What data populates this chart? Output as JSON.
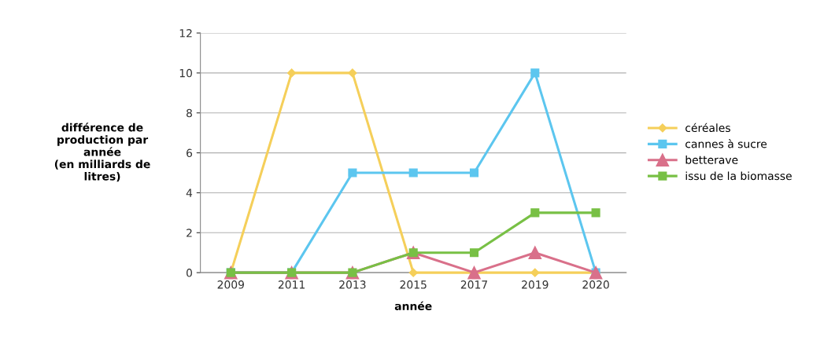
{
  "chart_data": {
    "type": "line",
    "xlabel": "année",
    "ylabel": "différence de\nproduction par\nannée\n(en milliards de\nlitres)",
    "categories": [
      "2009",
      "2011",
      "2013",
      "2015",
      "2017",
      "2019",
      "2020"
    ],
    "series": [
      {
        "name": "céréales",
        "color": "#f5cf5a",
        "marker": "diamond",
        "values": [
          0,
          10,
          10,
          0,
          0,
          0,
          0
        ]
      },
      {
        "name": "cannes à sucre",
        "color": "#5cc6ef",
        "marker": "square",
        "values": [
          0,
          0,
          5,
          5,
          5,
          10,
          0
        ]
      },
      {
        "name": "betterave",
        "color": "#d9708a",
        "marker": "triangle",
        "values": [
          0,
          0,
          0,
          1,
          0,
          1,
          0
        ]
      },
      {
        "name": "issu de la biomasse",
        "color": "#78c045",
        "marker": "square",
        "values": [
          0,
          0,
          0,
          1,
          1,
          3,
          3
        ]
      }
    ],
    "ylim": [
      0,
      12
    ],
    "yticks": [
      0,
      2,
      4,
      6,
      8,
      10,
      12
    ],
    "grid": "y",
    "legend": "right"
  }
}
